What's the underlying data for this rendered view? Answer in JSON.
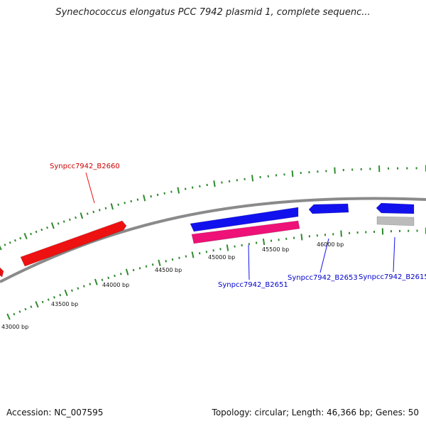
{
  "title": "Synechococcus elongatus PCC 7942 plasmid 1, complete sequenc...",
  "footer": {
    "accession": "Accession: NC_007595",
    "topology": "Topology: circular; Length: 46,366 bp; Genes: 50"
  },
  "colors": {
    "backbone": "#8a8a8a",
    "tick": "#2f8a2f",
    "gene_red": "#ee1111",
    "gene_blue": "#1111ee",
    "gene_pink": "#ee1177",
    "gene_gray": "#bbbbbb",
    "label_red": "#cc0000",
    "label_blue": "#0000cc"
  },
  "scale_labels": [
    "43000 bp",
    "43500 bp",
    "44000 bp",
    "44500 bp",
    "45000 bp",
    "45500 bp",
    "46000 bp"
  ],
  "gene_labels": [
    {
      "text": "Synpcc7942_B2660",
      "color": "red"
    },
    {
      "text": "Synpcc7942_B2651",
      "color": "blue"
    },
    {
      "text": "Synpcc7942_B2653",
      "color": "blue"
    },
    {
      "text": "Synpcc7942_B2615",
      "color": "blue"
    }
  ]
}
